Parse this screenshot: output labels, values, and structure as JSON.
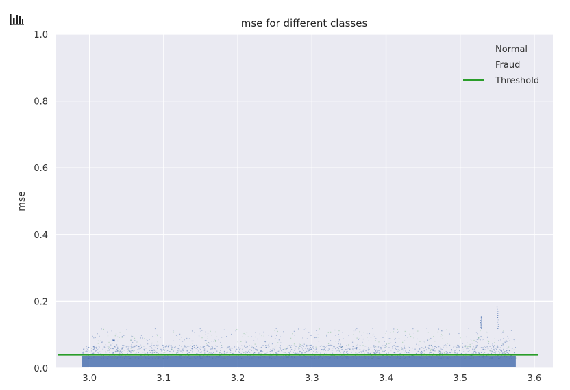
{
  "chart_data": {
    "type": "scatter",
    "title": "mse for different classes",
    "ylabel": "mse",
    "xlabel": "",
    "x_offset_label": "",
    "xlim": [
      2.955,
      3.625
    ],
    "ylim": [
      0.0,
      1.0
    ],
    "xticks": [
      3.0,
      3.1,
      3.2,
      3.3,
      3.4,
      3.5,
      3.6
    ],
    "xtick_labels": [
      "3.0",
      "3.1",
      "3.2",
      "3.3",
      "3.4",
      "3.5",
      "3.6"
    ],
    "yticks": [
      0.0,
      0.2,
      0.4,
      0.6,
      0.8,
      1.0
    ],
    "ytick_labels": [
      "0.0",
      "0.2",
      "0.4",
      "0.6",
      "0.8",
      "1.0"
    ],
    "grid": true,
    "background": "#eaeaf2",
    "legend_position": "top-right",
    "series": [
      {
        "name": "Normal",
        "color": "#4c72b0",
        "x_range": [
          2.99,
          3.575
        ],
        "y_band": [
          0.003,
          0.07
        ],
        "y_peak": 0.12
      },
      {
        "name": "Fraud",
        "color": "#55a868",
        "x_range": [
          2.99,
          3.575
        ],
        "y_band": [
          0.01,
          0.08
        ],
        "y_peak": 0.13
      }
    ],
    "outliers": [
      {
        "x": 3.55,
        "y_from": 0.12,
        "y_to": 0.185
      },
      {
        "x": 3.528,
        "y_from": 0.12,
        "y_to": 0.155
      },
      {
        "x": 3.032,
        "y_from": 0.085,
        "y_to": 0.085
      }
    ],
    "threshold": {
      "name": "Threshold",
      "value": 0.04,
      "x_from": 2.957,
      "x_to": 3.605,
      "color": "#2a9d2a"
    }
  },
  "toolbar": {
    "icon": "bar-chart-icon"
  }
}
